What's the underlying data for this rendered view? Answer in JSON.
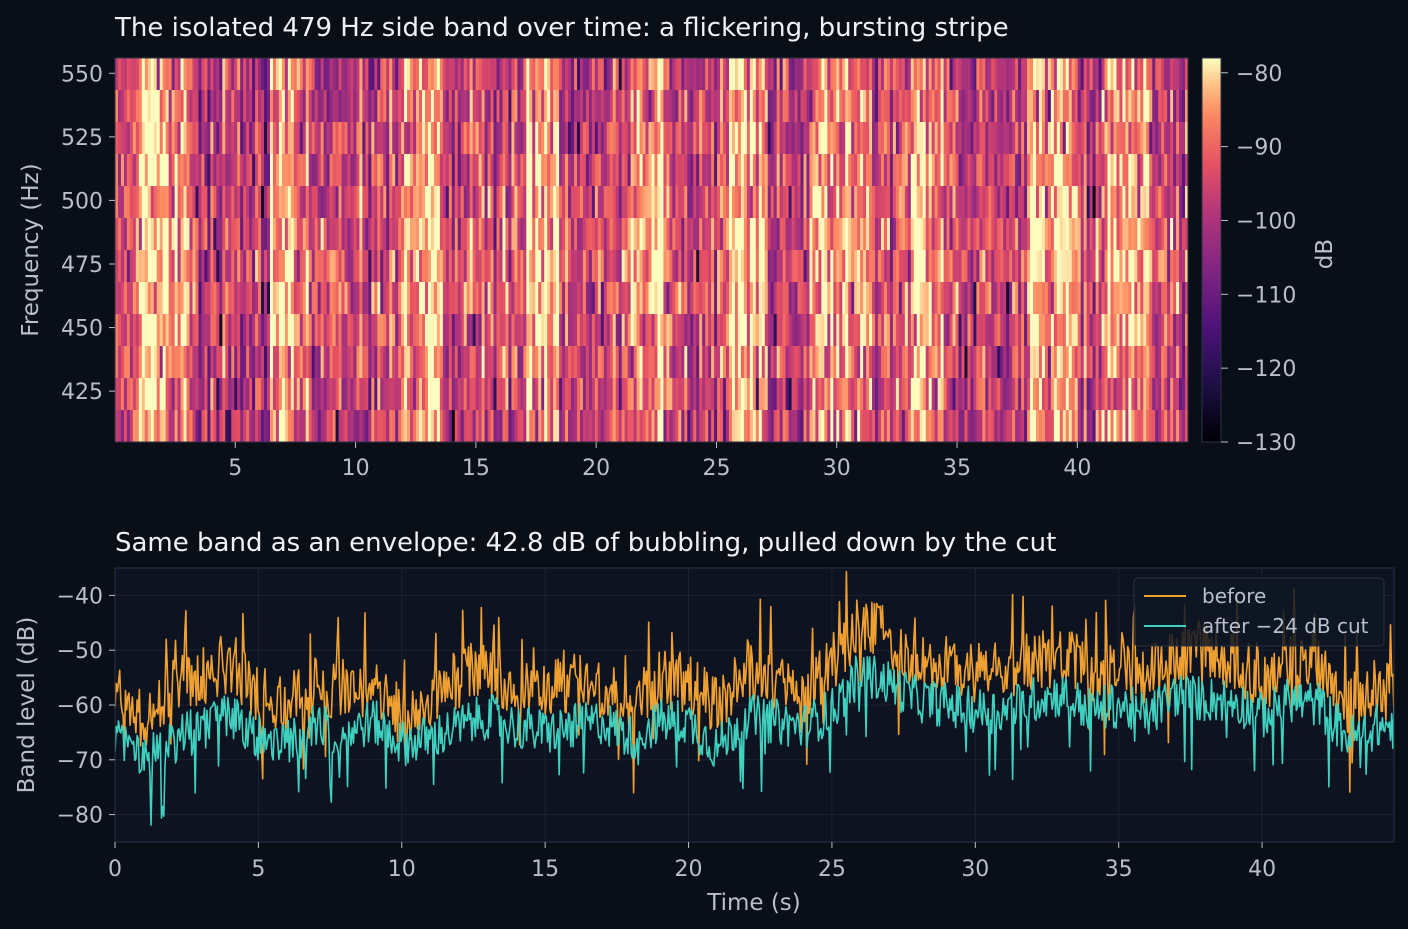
{
  "chart_data": [
    {
      "type": "heatmap",
      "title": "The isolated 479 Hz side band over time: a flickering, bursting stripe",
      "xlabel": "",
      "ylabel": "Frequency (Hz)",
      "xlim": [
        0,
        44.6
      ],
      "ylim": [
        405,
        556
      ],
      "xticks": [
        "5",
        "10",
        "15",
        "20",
        "25",
        "30",
        "35",
        "40"
      ],
      "yticks": [
        "425",
        "450",
        "475",
        "500",
        "525",
        "550"
      ],
      "colormap": "magma",
      "colorbar": {
        "label": "dB",
        "range": [
          -130,
          -78
        ],
        "ticks": [
          "−80",
          "−90",
          "−100",
          "−110",
          "−120",
          "−130"
        ]
      },
      "band_center_hz": 479,
      "loud_time_regions_s": [
        [
          1,
          3
        ],
        [
          6.5,
          8
        ],
        [
          12,
          13.5
        ],
        [
          17,
          18.5
        ],
        [
          21,
          23
        ],
        [
          25,
          27
        ],
        [
          29,
          31.5
        ],
        [
          32.5,
          34.5
        ],
        [
          38,
          40
        ],
        [
          41,
          43
        ]
      ]
    },
    {
      "type": "line",
      "title": "Same band as an envelope: 42.8 dB of bubbling, pulled down by the cut",
      "xlabel": "Time (s)",
      "ylabel": "Band level (dB)",
      "xlim": [
        0,
        44.6
      ],
      "ylim": [
        -85,
        -35
      ],
      "xticks": [
        "0",
        "5",
        "10",
        "15",
        "20",
        "25",
        "30",
        "35",
        "40"
      ],
      "yticks": [
        "−40",
        "−50",
        "−60",
        "−70",
        "−80"
      ],
      "grid": true,
      "legend_position": "top-right",
      "x": [
        0,
        1,
        2,
        3,
        4,
        5,
        6,
        7,
        8,
        9,
        10,
        11,
        12,
        13,
        14,
        15,
        16,
        17,
        18,
        19,
        20,
        21,
        22,
        23,
        24,
        25,
        26,
        27,
        28,
        29,
        30,
        31,
        32,
        33,
        34,
        35,
        36,
        37,
        38,
        39,
        40,
        41,
        42,
        43,
        44,
        44.6
      ],
      "series": [
        {
          "name": "before",
          "color": "#f0a030",
          "values": [
            -58,
            -63,
            -57,
            -55,
            -52,
            -58,
            -60,
            -56,
            -58,
            -57,
            -62,
            -59,
            -55,
            -53,
            -57,
            -58,
            -56,
            -57,
            -60,
            -55,
            -56,
            -60,
            -53,
            -56,
            -58,
            -52,
            -45,
            -48,
            -52,
            -53,
            -54,
            -54,
            -52,
            -51,
            -54,
            -53,
            -55,
            -51,
            -50,
            -52,
            -56,
            -52,
            -52,
            -60,
            -57,
            -58
          ]
        },
        {
          "name": "after −24 dB cut",
          "color": "#3fd0bf",
          "values": [
            -66,
            -70,
            -67,
            -64,
            -62,
            -66,
            -67,
            -64,
            -65,
            -63,
            -67,
            -66,
            -64,
            -62,
            -64,
            -65,
            -64,
            -63,
            -66,
            -63,
            -63,
            -68,
            -62,
            -63,
            -64,
            -61,
            -54,
            -56,
            -59,
            -60,
            -61,
            -61,
            -59,
            -58,
            -61,
            -60,
            -62,
            -58,
            -59,
            -59,
            -62,
            -59,
            -60,
            -66,
            -64,
            -64
          ]
        }
      ]
    }
  ]
}
